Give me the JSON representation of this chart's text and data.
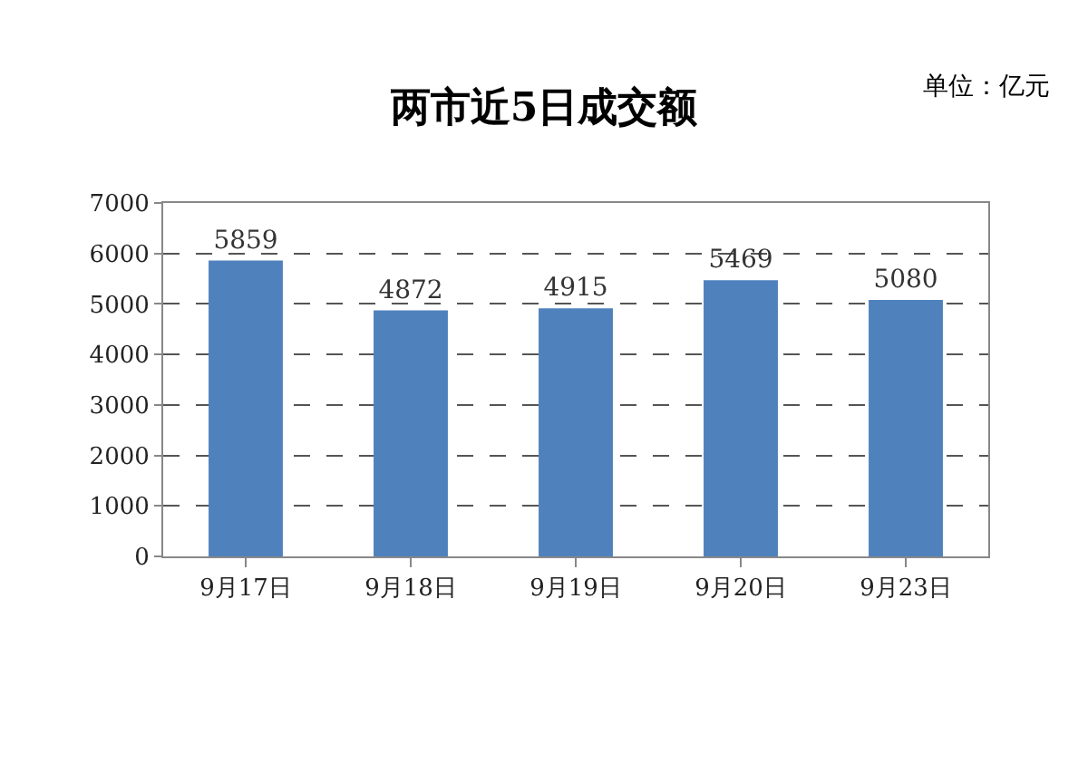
{
  "chart_data": {
    "type": "bar",
    "title": "两市近5日成交额",
    "annotations": [
      "单位：亿元"
    ],
    "categories": [
      "9月17日",
      "9月18日",
      "9月19日",
      "9月20日",
      "9月23日"
    ],
    "values": [
      5859,
      4872,
      4915,
      5469,
      5080
    ],
    "color": "#4f81bd",
    "ylim": [
      0,
      7000
    ],
    "yticks": [
      0,
      1000,
      2000,
      3000,
      4000,
      5000,
      6000,
      7000
    ],
    "grid": "y",
    "data_labels": true
  }
}
